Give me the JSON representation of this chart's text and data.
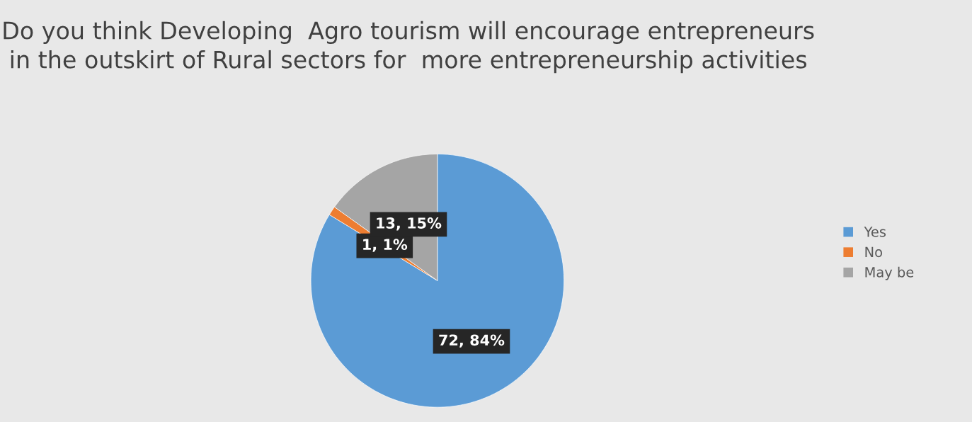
{
  "chart_data": {
    "type": "pie",
    "title": "Do you think Developing  Agro tourism will encourage entrepreneurs in the outskirt of Rural sectors for  more entrepreneurship activities",
    "categories": [
      "Yes",
      "No",
      "May be"
    ],
    "values": [
      72,
      1,
      13
    ],
    "colors": [
      "#5b9bd5",
      "#ed7d31",
      "#a5a5a5"
    ],
    "value_labels": [
      "72, 84%",
      "1, 1%",
      "13, 15%"
    ],
    "legend": "right"
  }
}
